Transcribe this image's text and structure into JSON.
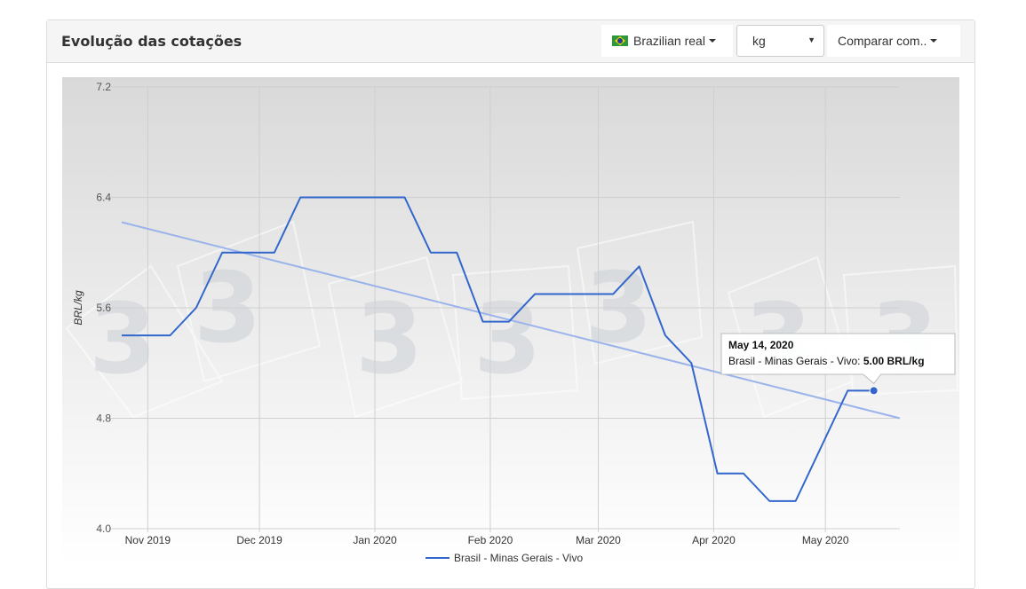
{
  "panel": {
    "title": "Evolução das cotações",
    "currency_label": "Brazilian real",
    "unit_value": "kg",
    "compare_label": "Comparar com.."
  },
  "colors": {
    "series": "#3366cc",
    "trend": "#9ab3ea",
    "grid": "#cfcfcf",
    "plot_bg_top": "#d9d9d9",
    "plot_bg_bottom": "#ffffff"
  },
  "icons": {
    "flag": "brazil-flag-icon",
    "dropdown": "caret-down-icon"
  },
  "chart_data": {
    "type": "line",
    "title": "",
    "ylabel": "BRL/kg",
    "ylim": [
      4.0,
      7.2
    ],
    "yticks": [
      4.0,
      4.8,
      5.6,
      6.4,
      7.2
    ],
    "ytick_labels": [
      "4.0",
      "4.8",
      "5.6",
      "6.4",
      "7.2"
    ],
    "xlim": [
      "2019-10-25",
      "2020-05-21"
    ],
    "xticks": [
      "2019-11-01",
      "2019-12-01",
      "2020-01-01",
      "2020-02-01",
      "2020-03-01",
      "2020-04-01",
      "2020-05-01"
    ],
    "xtick_labels": [
      "Nov 2019",
      "Dec 2019",
      "Jan 2020",
      "Feb 2020",
      "Mar 2020",
      "Apr 2020",
      "May 2020"
    ],
    "series": [
      {
        "name": "Brasil - Minas Gerais - Vivo",
        "x": [
          "2019-10-25",
          "2019-11-07",
          "2019-11-14",
          "2019-11-21",
          "2019-12-05",
          "2019-12-12",
          "2019-12-19",
          "2020-01-02",
          "2020-01-09",
          "2020-01-16",
          "2020-01-23",
          "2020-01-30",
          "2020-02-06",
          "2020-02-13",
          "2020-02-20",
          "2020-02-27",
          "2020-03-05",
          "2020-03-12",
          "2020-03-19",
          "2020-03-26",
          "2020-04-02",
          "2020-04-09",
          "2020-04-16",
          "2020-04-23",
          "2020-04-30",
          "2020-05-07",
          "2020-05-14"
        ],
        "y": [
          5.4,
          5.4,
          5.6,
          6.0,
          6.0,
          6.4,
          6.4,
          6.4,
          6.4,
          6.0,
          6.0,
          5.5,
          5.5,
          5.7,
          5.7,
          5.7,
          5.7,
          5.9,
          5.4,
          5.2,
          4.4,
          4.4,
          4.2,
          4.2,
          4.6,
          5.0,
          5.0
        ]
      }
    ],
    "trendline": {
      "x": [
        "2019-10-25",
        "2020-05-21"
      ],
      "y": [
        6.22,
        4.8
      ]
    },
    "tooltip": {
      "date": "May 14, 2020",
      "label": "Brasil - Minas Gerais - Vivo: ",
      "value": "5.00 BRL/kg"
    },
    "legend": "bottom-center",
    "grid": true
  }
}
